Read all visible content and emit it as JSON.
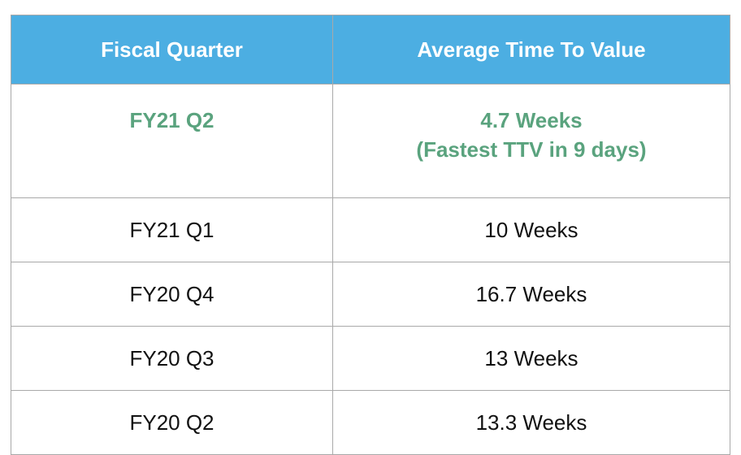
{
  "table": {
    "header": [
      "Fiscal Quarter",
      "Average Time To Value"
    ],
    "rows": [
      [
        "FY21 Q2",
        "4.7 Weeks",
        "(Fastest TTV in 9 days)"
      ],
      [
        "FY21 Q1",
        "10 Weeks"
      ],
      [
        "FY20 Q4",
        "16.7 Weeks"
      ],
      [
        "FY20 Q3",
        "13 Weeks"
      ],
      [
        "FY20 Q2",
        "13.3 Weeks"
      ]
    ]
  }
}
